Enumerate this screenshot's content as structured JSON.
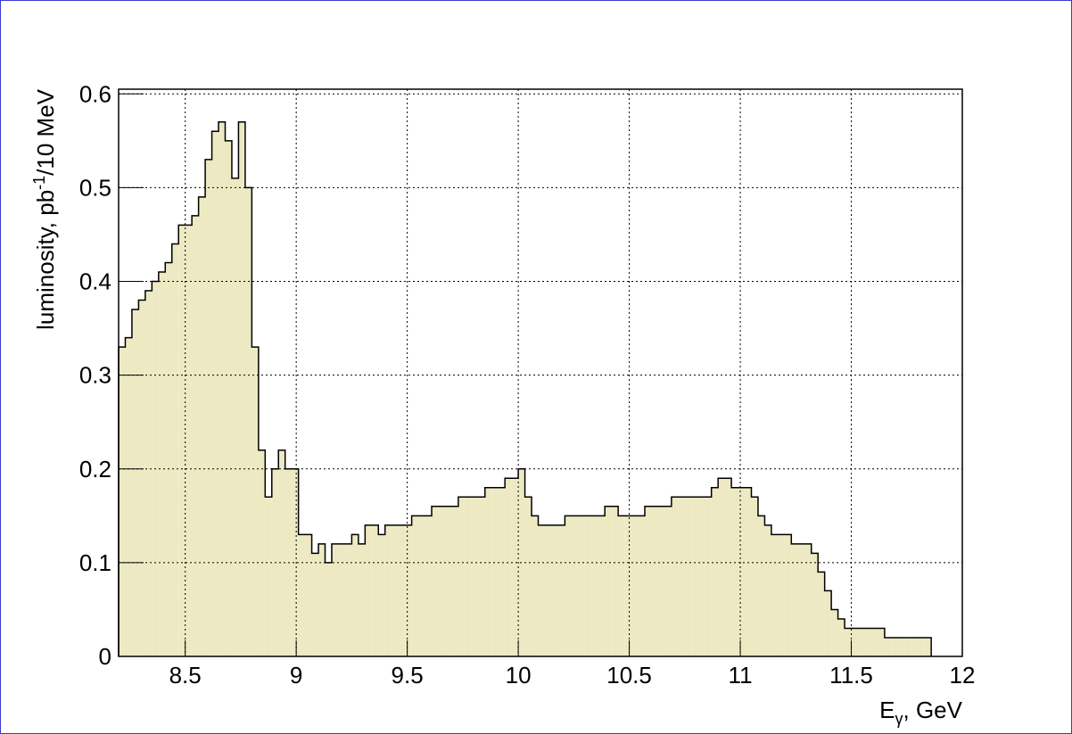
{
  "chart_data": {
    "type": "histogram",
    "xlabel": {
      "text": "E",
      "sub": "γ",
      "rest": ", GeV"
    },
    "ylabel": {
      "text": "luminosity, pb",
      "sup": "-1",
      "rest": "/10 MeV"
    },
    "bins": [
      8.2,
      8.23,
      8.26,
      8.29,
      8.32,
      8.35,
      8.38,
      8.41,
      8.44,
      8.47,
      8.5,
      8.53,
      8.56,
      8.59,
      8.62,
      8.65,
      8.68,
      8.71,
      8.74,
      8.77,
      8.8,
      8.83,
      8.86,
      8.89,
      8.92,
      8.95,
      8.98,
      9.01,
      9.04,
      9.07,
      9.1,
      9.13,
      9.16,
      9.19,
      9.22,
      9.25,
      9.28,
      9.31,
      9.34,
      9.37,
      9.4,
      9.43,
      9.46,
      9.49,
      9.52,
      9.55,
      9.58,
      9.61,
      9.64,
      9.67,
      9.7,
      9.73,
      9.76,
      9.79,
      9.82,
      9.85,
      9.88,
      9.91,
      9.94,
      9.97,
      10,
      10.03,
      10.06,
      10.09,
      10.12,
      10.15,
      10.18,
      10.21,
      10.24,
      10.27,
      10.3,
      10.33,
      10.36,
      10.39,
      10.42,
      10.45,
      10.48,
      10.51,
      10.54,
      10.57,
      10.6,
      10.63,
      10.66,
      10.69,
      10.72,
      10.75,
      10.78,
      10.81,
      10.84,
      10.87,
      10.9,
      10.93,
      10.96,
      10.99,
      11.02,
      11.05,
      11.08,
      11.11,
      11.14,
      11.17,
      11.2,
      11.23,
      11.26,
      11.29,
      11.32,
      11.35,
      11.38,
      11.41,
      11.44,
      11.47,
      11.5,
      11.53,
      11.56,
      11.59,
      11.62,
      11.65,
      11.68,
      11.71,
      11.74,
      11.77,
      11.8,
      11.83,
      11.86
    ],
    "counts": [
      0.33,
      0.34,
      0.37,
      0.38,
      0.39,
      0.4,
      0.41,
      0.42,
      0.44,
      0.46,
      0.46,
      0.47,
      0.49,
      0.53,
      0.56,
      0.57,
      0.55,
      0.51,
      0.57,
      0.5,
      0.33,
      0.22,
      0.17,
      0.2,
      0.22,
      0.2,
      0.2,
      0.13,
      0.13,
      0.11,
      0.12,
      0.1,
      0.12,
      0.12,
      0.12,
      0.13,
      0.12,
      0.14,
      0.14,
      0.13,
      0.14,
      0.14,
      0.14,
      0.14,
      0.15,
      0.15,
      0.15,
      0.16,
      0.16,
      0.16,
      0.16,
      0.17,
      0.17,
      0.17,
      0.17,
      0.18,
      0.18,
      0.18,
      0.19,
      0.19,
      0.2,
      0.17,
      0.15,
      0.14,
      0.14,
      0.14,
      0.14,
      0.15,
      0.15,
      0.15,
      0.15,
      0.15,
      0.15,
      0.16,
      0.16,
      0.15,
      0.15,
      0.15,
      0.15,
      0.16,
      0.16,
      0.16,
      0.16,
      0.17,
      0.17,
      0.17,
      0.17,
      0.17,
      0.17,
      0.18,
      0.19,
      0.19,
      0.18,
      0.18,
      0.18,
      0.17,
      0.15,
      0.14,
      0.13,
      0.13,
      0.13,
      0.12,
      0.12,
      0.12,
      0.11,
      0.09,
      0.07,
      0.05,
      0.04,
      0.03,
      0.03,
      0.03,
      0.03,
      0.03,
      0.03,
      0.02,
      0.02,
      0.02,
      0.02,
      0.02,
      0.02,
      0.02
    ],
    "color": "#ede9c2",
    "xlim": [
      8.2,
      12
    ],
    "xticks": [
      8.5,
      9,
      9.5,
      10,
      10.5,
      11,
      11.5,
      12
    ],
    "ylim": [
      0,
      0.605
    ],
    "yticks": [
      0,
      0.1,
      0.2,
      0.3,
      0.4,
      0.5,
      0.6
    ],
    "grid": true
  }
}
